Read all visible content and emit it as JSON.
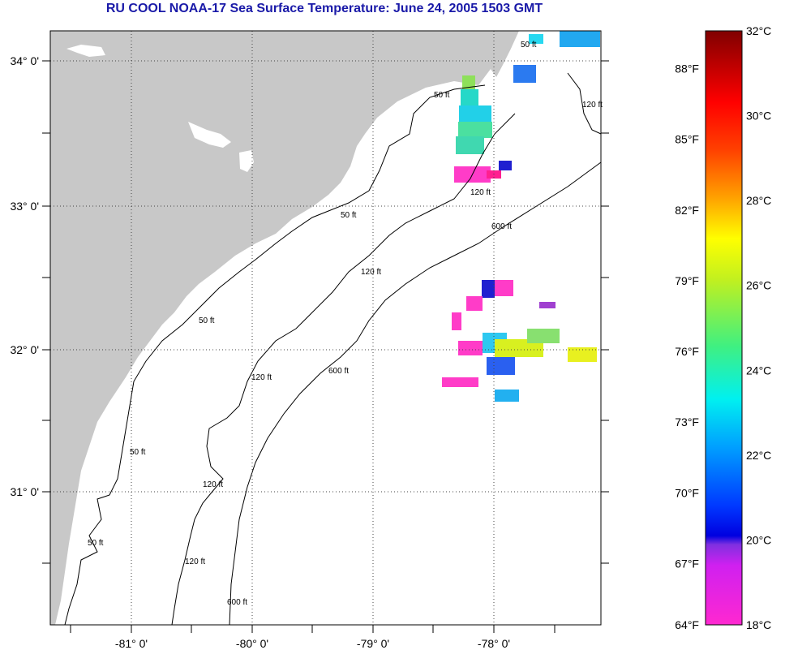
{
  "title": "RU COOL  NOAA-17  Sea Surface Temperature:  June 24, 2005 1503 GMT",
  "map": {
    "lon_ticks": [
      "-81° 0'",
      "-80° 0'",
      "-79° 0'",
      "-78° 0'"
    ],
    "lat_ticks": [
      "34° 0'",
      "33° 0'",
      "32° 0'",
      "31° 0'"
    ],
    "contour_labels": [
      "50 ft",
      "50 ft",
      "50 ft",
      "50 ft",
      "50 ft",
      "50 ft",
      "120 ft",
      "120 ft",
      "120 ft",
      "120 ft",
      "120 ft",
      "120 ft",
      "600 ft",
      "600 ft",
      "600 ft"
    ],
    "colors": {
      "land": "#c8c8c8",
      "ocean": "#ffffff",
      "cloud": "#ffffff"
    }
  },
  "colorbar": {
    "fahrenheit": [
      "88°F",
      "85°F",
      "82°F",
      "79°F",
      "76°F",
      "73°F",
      "70°F",
      "67°F",
      "64°F"
    ],
    "celsius": [
      "32°C",
      "30°C",
      "28°C",
      "26°C",
      "24°C",
      "22°C",
      "20°C",
      "18°C"
    ],
    "range_c": [
      18,
      32
    ]
  }
}
